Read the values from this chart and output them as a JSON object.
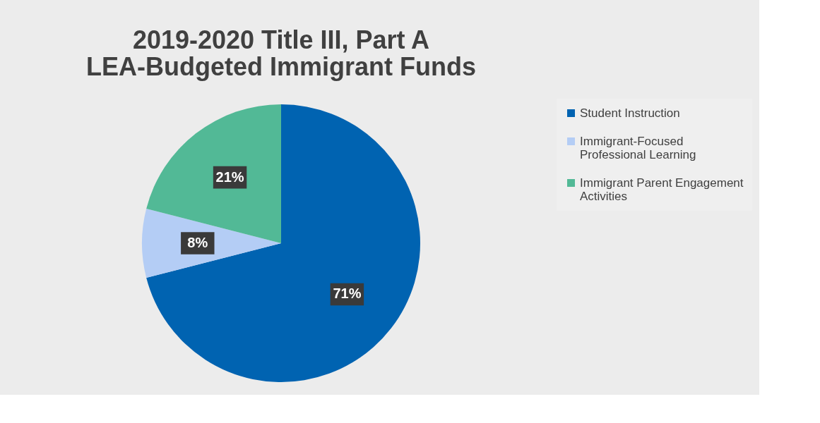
{
  "chart_data": {
    "type": "pie",
    "title": [
      "2019-2020 Title III, Part A",
      "LEA-Budgeted Immigrant Funds"
    ],
    "categories": [
      "Student Instruction",
      "Immigrant-Focused Professional Learning",
      "Immigrant Parent Engagement Activities"
    ],
    "values": [
      71,
      8,
      21
    ],
    "colors": [
      "#0063b1",
      "#b4cdf5",
      "#52b996"
    ],
    "value_labels": [
      "71%",
      "8%",
      "21%"
    ],
    "legend": "right"
  }
}
